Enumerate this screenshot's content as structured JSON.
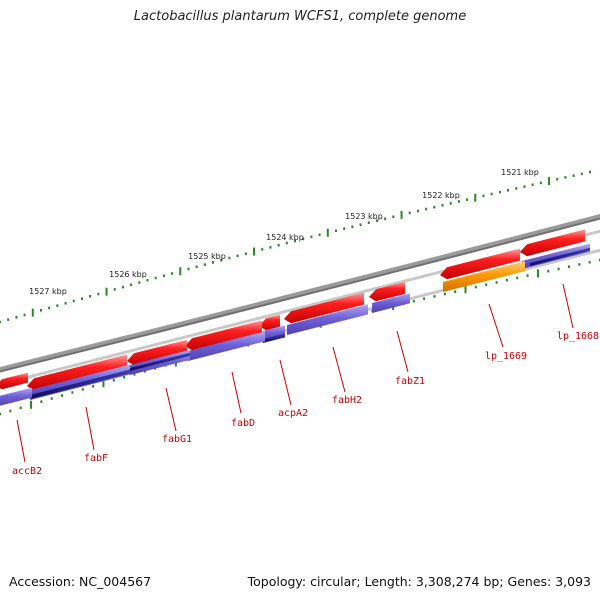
{
  "title": "Lactobacillus plantarum WCFS1, complete genome",
  "footer": {
    "accession": "Accession: NC_004567",
    "topology": "Topology: circular; Length: 3,308,274 bp; Genes: 3,093"
  },
  "ruler_ticks": [
    "1521 kbp",
    "1522 kbp",
    "1523 kbp",
    "1524 kbp",
    "1525 kbp",
    "1526 kbp",
    "1527 kbp"
  ],
  "genes": [
    {
      "label": "lp_1668",
      "colors": {
        "cds": "#ee1111",
        "feature": "#6a5acd"
      }
    },
    {
      "label": "lp_1669",
      "colors": {
        "cds": "#ee1111",
        "feature": "#ff9900"
      }
    },
    {
      "label": "fabZ1"
    },
    {
      "label": "fabH2"
    },
    {
      "label": "acpA2"
    },
    {
      "label": "fabD"
    },
    {
      "label": "fabG1"
    },
    {
      "label": "fabF"
    },
    {
      "label": "accB2"
    }
  ],
  "colors": {
    "backbone": "#808080",
    "ticks": "#228b22",
    "cds": "#ee1111",
    "feature": "#6a5acd",
    "feature_dark": "#1a1a80",
    "rna": "#ff9900",
    "labels": "#cc0000"
  }
}
